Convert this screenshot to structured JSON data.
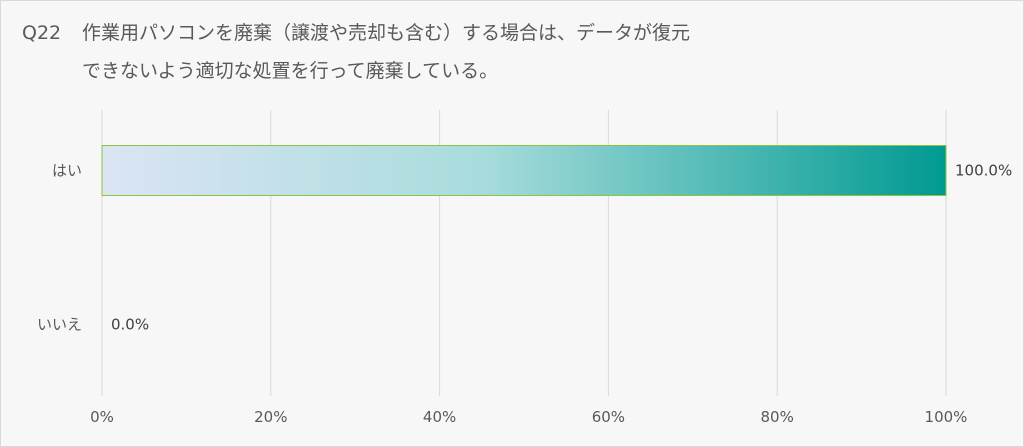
{
  "title": {
    "qno": "Q22",
    "line1": "作業用パソコンを廃棄（譲渡や売却も含む）する場合は、データが復元",
    "line2": "できないよう適切な処置を行って廃棄している。"
  },
  "colors": {
    "bar_start": "#dbe4f3",
    "bar_mid": "#a8dcdc",
    "bar_end": "#009a91",
    "bar_border": "#8cc63f",
    "grid": "#d9d9d9"
  },
  "chart_data": {
    "type": "bar",
    "orientation": "horizontal",
    "categories": [
      "はい",
      "いいえ"
    ],
    "values": [
      100.0,
      0.0
    ],
    "data_labels": [
      "100.0%",
      "0.0%"
    ],
    "xlim": [
      0,
      100
    ],
    "x_ticks": [
      0,
      20,
      40,
      60,
      80,
      100
    ],
    "x_tick_labels": [
      "0%",
      "20%",
      "40%",
      "60%",
      "80%",
      "100%"
    ],
    "grid": true,
    "legend": "none"
  }
}
